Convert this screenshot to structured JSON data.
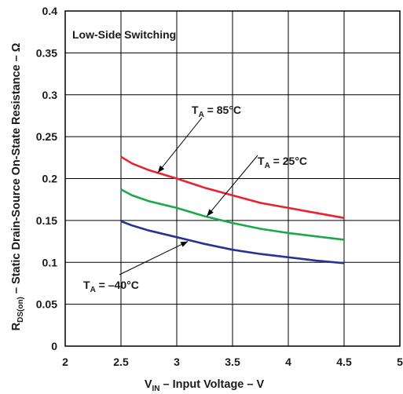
{
  "chart_data": {
    "type": "line",
    "title": "Low-Side Switching",
    "xlabel": {
      "pre": "V",
      "sub": "IN",
      "post": " – Input Voltage – V"
    },
    "ylabel": {
      "pre": "R",
      "sub": "DS(on)",
      "post": " – Static Drain-Source On-State Resistance – Ω"
    },
    "xlim": [
      2,
      5
    ],
    "ylim": [
      0,
      0.4
    ],
    "x_ticks": [
      "2",
      "2.5",
      "3",
      "3.5",
      "4",
      "4.5",
      "5"
    ],
    "y_ticks": [
      "0",
      "0.05",
      "0.1",
      "0.15",
      "0.2",
      "0.25",
      "0.3",
      "0.35",
      "0.4"
    ],
    "grid": true,
    "series": [
      {
        "name": "85°C",
        "color": "#e8222e",
        "x": [
          2.5,
          2.6,
          2.75,
          3.0,
          3.25,
          3.5,
          3.75,
          4.0,
          4.25,
          4.5
        ],
        "y": [
          0.226,
          0.218,
          0.21,
          0.2,
          0.189,
          0.18,
          0.171,
          0.165,
          0.159,
          0.153
        ]
      },
      {
        "name": "25°C",
        "color": "#1aa84a",
        "x": [
          2.5,
          2.6,
          2.75,
          3.0,
          3.25,
          3.5,
          3.75,
          4.0,
          4.25,
          4.5
        ],
        "y": [
          0.187,
          0.18,
          0.173,
          0.165,
          0.155,
          0.147,
          0.14,
          0.135,
          0.131,
          0.127
        ]
      },
      {
        "name": "–40°C",
        "color": "#253494",
        "x": [
          2.5,
          2.6,
          2.75,
          3.0,
          3.25,
          3.5,
          3.75,
          4.0,
          4.25,
          4.5
        ],
        "y": [
          0.149,
          0.144,
          0.138,
          0.13,
          0.122,
          0.115,
          0.11,
          0.106,
          0.102,
          0.099
        ]
      }
    ],
    "annotations": [
      {
        "label_pre": "T",
        "label_sub": "A",
        "label_post": " = 85°C",
        "arrow_to": [
          2.83,
          0.207
        ]
      },
      {
        "label_pre": "T",
        "label_sub": "A",
        "label_post": " = 25°C",
        "arrow_to": [
          3.27,
          0.155
        ]
      },
      {
        "label_pre": "T",
        "label_sub": "A",
        "label_post": " = –40°C",
        "arrow_to": [
          3.1,
          0.125
        ]
      }
    ]
  }
}
